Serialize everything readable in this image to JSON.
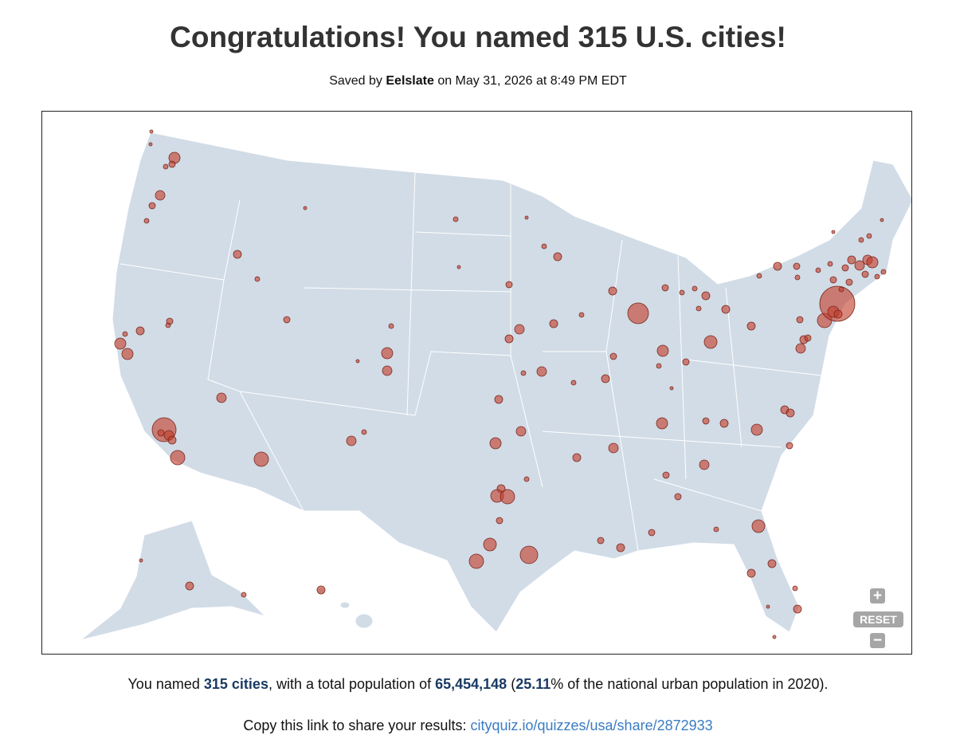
{
  "header": {
    "title": "Congratulations! You named 315 U.S. cities!",
    "saved_prefix": "Saved by",
    "user": "Eelslate",
    "saved_suffix": "on May 31, 2026 at 8:49 PM EDT"
  },
  "map_controls": {
    "zoom_in": "+",
    "reset": "RESET",
    "zoom_out": "−"
  },
  "summary": {
    "part1": "You named",
    "cities": "315 cities",
    "part2": ", with a total population of",
    "population": "65,454,148",
    "part3": "(",
    "percent": "25.11",
    "part4": "% of the national urban population in 2020)."
  },
  "share": {
    "prompt": "Copy this link to share your results:",
    "link": "cityquiz.io/quizzes/usa/share/2872933"
  }
}
